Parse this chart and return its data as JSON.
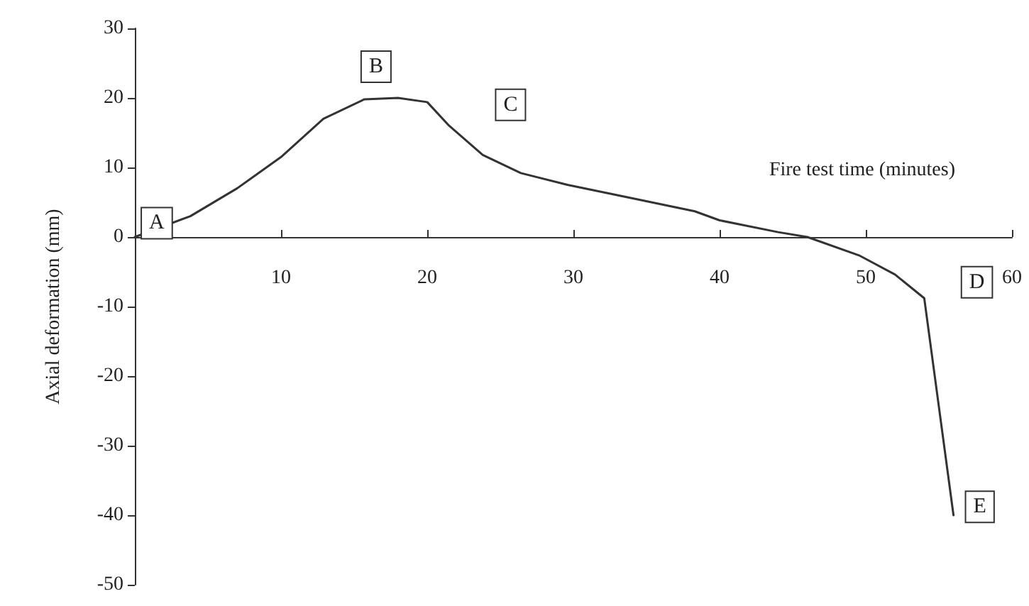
{
  "chart_data": {
    "type": "line",
    "xlabel": "Fire test time (minutes)",
    "ylabel": "Axial deformation (mm)",
    "x": [
      0,
      3.8,
      7,
      10,
      12.9,
      15.7,
      18,
      20,
      21.5,
      23.8,
      26.4,
      29.6,
      34.4,
      38.3,
      40,
      44,
      46,
      49.6,
      52,
      54,
      56
    ],
    "series": [
      {
        "color": "#333333",
        "values": [
          0,
          3,
          7,
          11.5,
          17,
          19.8,
          20,
          19.4,
          16,
          11.8,
          9.2,
          7.5,
          5.4,
          3.7,
          2.4,
          0.7,
          0,
          -2.7,
          -5.4,
          -8.8,
          -40
        ]
      }
    ],
    "xlim": [
      0,
      60
    ],
    "xticks": [
      10,
      20,
      30,
      40,
      50,
      60
    ],
    "ylim": [
      -50,
      30
    ],
    "yticks": [
      -50,
      -40,
      -30,
      -20,
      -10,
      0,
      10,
      20,
      30
    ],
    "marker": "none",
    "line_style": "solid",
    "annotations": [
      {
        "text": "A",
        "x": 1.5,
        "y": 2
      },
      {
        "text": "B",
        "x": 16.5,
        "y": 24.5
      },
      {
        "text": "C",
        "x": 25.7,
        "y": 19
      },
      {
        "text": "D",
        "x": 57.6,
        "y": -6.5
      },
      {
        "text": "E",
        "x": 57.8,
        "y": -38.8
      }
    ]
  }
}
